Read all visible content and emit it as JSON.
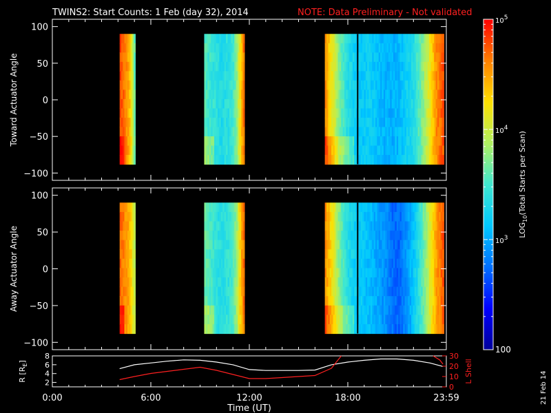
{
  "header": {
    "title": "TWINS2: Start Counts:  1 Feb (day  32), 2014",
    "note": "NOTE: Data Preliminary - Not validated"
  },
  "side_date": "21 Feb 14",
  "colors": {
    "background": "#000000",
    "axes": "#ffffff",
    "note": "#ff2020",
    "r_line": "#ffffff",
    "lshell_line": "#ff2020",
    "colormap": [
      "#00009a",
      "#0000ff",
      "#0070ff",
      "#00c8ff",
      "#40e8d0",
      "#b0f060",
      "#ffe000",
      "#ff8000",
      "#ff0000"
    ]
  },
  "chart_data": [
    {
      "type": "heatmap",
      "name": "toward",
      "ylabel": "Toward Actuator Angle",
      "ylim": [
        -110,
        110
      ],
      "yticks": [
        100,
        50,
        0,
        -50,
        -100
      ],
      "xlim": [
        0,
        24
      ],
      "angle_range": [
        -88,
        90
      ],
      "blocks": [
        {
          "start": 4.1,
          "end": 5.05,
          "profile": [
            0.93,
            0.9,
            0.86,
            0.82,
            0.72,
            0.55
          ]
        },
        {
          "start": 9.25,
          "end": 11.7,
          "profile": [
            0.52,
            0.5,
            0.48,
            0.47,
            0.45,
            0.44,
            0.46,
            0.47,
            0.5,
            0.58,
            0.72,
            0.88
          ]
        },
        {
          "start": 16.6,
          "end": 23.85,
          "profile": [
            0.85,
            0.7,
            0.55,
            0.45,
            0.4,
            0.38,
            0.4,
            0.37,
            0.35,
            0.34,
            0.36,
            0.4,
            0.45,
            0.55,
            0.68,
            0.85,
            0.92
          ]
        }
      ],
      "gaps": [
        18.6
      ]
    },
    {
      "type": "heatmap",
      "name": "away",
      "ylabel": "Away Actuator Angle",
      "ylim": [
        -110,
        110
      ],
      "yticks": [
        100,
        50,
        0,
        -50,
        -100
      ],
      "xlim": [
        0,
        24
      ],
      "angle_range": [
        -88,
        90
      ],
      "blocks": [
        {
          "start": 4.1,
          "end": 5.05,
          "profile": [
            0.9,
            0.88,
            0.85,
            0.82,
            0.75,
            0.65
          ]
        },
        {
          "start": 9.25,
          "end": 11.7,
          "profile": [
            0.55,
            0.52,
            0.5,
            0.48,
            0.46,
            0.45,
            0.47,
            0.48,
            0.52,
            0.6,
            0.75,
            0.88
          ]
        },
        {
          "start": 16.6,
          "end": 23.85,
          "profile": [
            0.85,
            0.72,
            0.55,
            0.45,
            0.4,
            0.38,
            0.36,
            0.33,
            0.3,
            0.25,
            0.24,
            0.3,
            0.38,
            0.5,
            0.65,
            0.82,
            0.92
          ]
        }
      ],
      "gaps": [
        18.6
      ]
    },
    {
      "type": "line",
      "name": "orbit",
      "ylabel": "R [R",
      "ylabel_sub": "E",
      "ylabel_end": "]",
      "y2label": "L Shell",
      "ylim": [
        1,
        8
      ],
      "yticks": [
        8,
        6,
        4,
        2
      ],
      "y2lim": [
        0,
        30
      ],
      "y2ticks": [
        30,
        20,
        10,
        0
      ],
      "xlim": [
        0,
        24
      ],
      "xticks": [
        {
          "value": 0,
          "label": "0:00"
        },
        {
          "value": 6,
          "label": "6:00"
        },
        {
          "value": 12,
          "label": "12:00"
        },
        {
          "value": 18,
          "label": "18:00"
        },
        {
          "value": 24,
          "label": "23:59"
        }
      ],
      "xlabel": "Time (UT)",
      "series": [
        {
          "axis": "left",
          "x": [
            4.1,
            5,
            6,
            7,
            8,
            9,
            10,
            11,
            12,
            13,
            14,
            15,
            16,
            17,
            18,
            19,
            20,
            21,
            22,
            23,
            23.8
          ],
          "y": [
            5.1,
            6.0,
            6.4,
            6.8,
            7.1,
            7.0,
            6.6,
            6.0,
            4.9,
            4.7,
            4.7,
            4.7,
            4.8,
            6.0,
            6.6,
            7.0,
            7.3,
            7.3,
            7.0,
            6.4,
            5.6
          ]
        },
        {
          "axis": "right",
          "x": [
            4.1,
            5,
            6,
            7,
            8,
            9,
            10,
            11,
            12,
            13,
            14,
            15,
            16,
            17,
            17.6,
            null,
            23.2,
            23.6,
            23.8
          ],
          "y": [
            7,
            10,
            13,
            15,
            17,
            19,
            16,
            12,
            8,
            8,
            9,
            10,
            11,
            18,
            30,
            null,
            30,
            26,
            22
          ]
        }
      ]
    },
    {
      "type": "colorbar",
      "name": "colorbar",
      "label": "LOG",
      "label_sub": "10",
      "label_end": "(Total Starts per Scan)",
      "ticks": [
        {
          "value": 2,
          "label": "100"
        },
        {
          "value": 3,
          "label": "10"
        },
        {
          "value": 4,
          "label": "10"
        },
        {
          "value": 5,
          "label": "10"
        }
      ],
      "tick_exponents": [
        "",
        "3",
        "4",
        "5"
      ],
      "range": [
        2,
        5
      ]
    }
  ]
}
